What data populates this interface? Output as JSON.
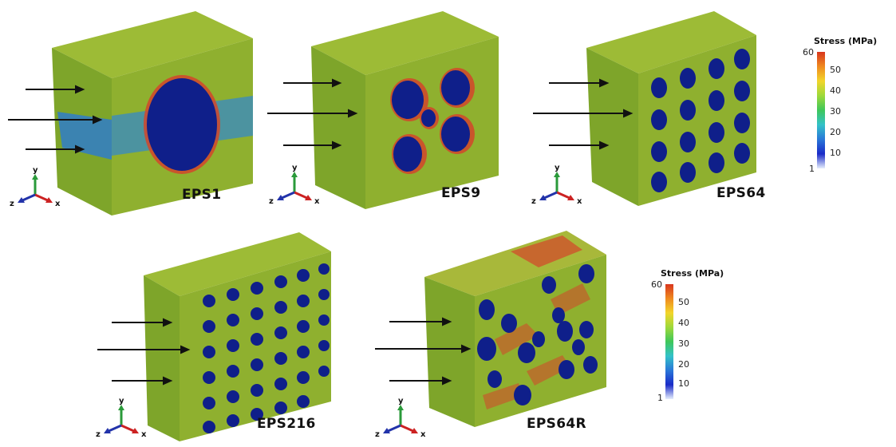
{
  "panels": [
    {
      "label": "EPS1"
    },
    {
      "label": "EPS9"
    },
    {
      "label": "EPS64"
    },
    {
      "label": "EPS216"
    },
    {
      "label": "EPS64R"
    }
  ],
  "axis_triad": {
    "x": "x",
    "y": "y",
    "z": "z"
  },
  "legend": {
    "title": "Stress (MPa)",
    "min": "1",
    "max": "60",
    "ticks": [
      "50",
      "40",
      "30",
      "20",
      "10"
    ]
  },
  "colors": {
    "matrix": "#8ca631",
    "matrix_light": "#a6b83c",
    "inclusion": "#0f1f8a",
    "low_stress": "#2a7ad0",
    "mid_stress": "#39c46a",
    "high_stress": "#d4452a"
  }
}
